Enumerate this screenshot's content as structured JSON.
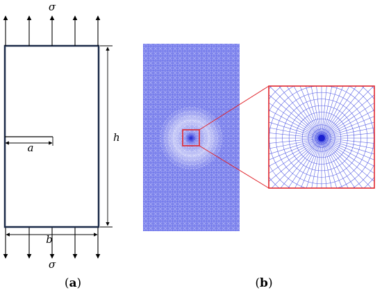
{
  "panel_a": {
    "sigma_top": "σ",
    "sigma_bottom": "σ",
    "crack_label": "a",
    "height_label": "h",
    "width_label": "b",
    "caption_open": "(",
    "caption_letter": "a",
    "caption_close": ")"
  },
  "panel_b": {
    "caption_open": "(",
    "caption_letter": "b",
    "caption_close": ")",
    "mesh_color": "#5b63e8",
    "highlight_color": "#e0242b"
  }
}
